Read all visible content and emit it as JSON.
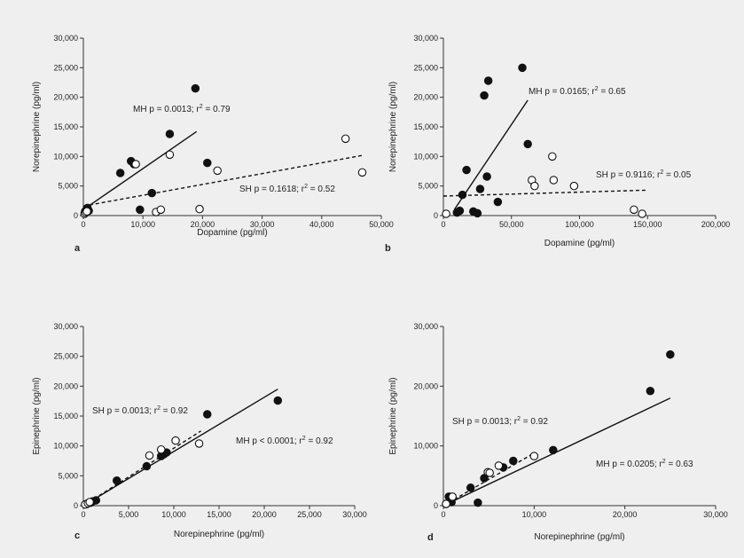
{
  "chart_data": [
    {
      "type": "scatter",
      "panel_label": "a",
      "xlabel": "Dopamine (pg/ml)",
      "ylabel": "Norepinephrine (pg/ml)",
      "xlim": [
        0,
        50000
      ],
      "ylim": [
        0,
        30000
      ],
      "xticks": [
        "0",
        "10,000",
        "20,000",
        "30,000",
        "40,000",
        "50,000"
      ],
      "yticks": [
        "0",
        "5,000",
        "10,000",
        "15,000",
        "20,000",
        "25,000",
        "30,000"
      ],
      "series": [
        {
          "name": "MH",
          "marker": "filled",
          "x": [
            300,
            500,
            700,
            900,
            6200,
            8000,
            8500,
            9500,
            11500,
            14500,
            18800,
            20800
          ],
          "y": [
            700,
            1000,
            1300,
            800,
            7200,
            9200,
            8700,
            1000,
            3800,
            13800,
            21500,
            8900
          ],
          "fit": {
            "line": "solid",
            "x": [
              0,
              19000
            ],
            "y": [
              1000,
              14200
            ]
          },
          "annotation": {
            "prefix": "MH p = 0.0013; r",
            "sup": "2",
            "suffix": " = 0.79"
          }
        },
        {
          "name": "SH",
          "marker": "open",
          "x": [
            200,
            400,
            600,
            8800,
            12200,
            13000,
            14500,
            19500,
            22500,
            44000,
            46800
          ],
          "y": [
            300,
            500,
            700,
            8700,
            600,
            1000,
            10300,
            1100,
            7600,
            13000,
            7300
          ],
          "fit": {
            "line": "dashed",
            "x": [
              0,
              47000
            ],
            "y": [
              1600,
              10200
            ]
          },
          "annotation": {
            "prefix": "SH p = 0.1618; r",
            "sup": "2",
            "suffix": " = 0.52"
          }
        }
      ]
    },
    {
      "type": "scatter",
      "panel_label": "b",
      "xlabel": "Dopamine (pg/ml)",
      "ylabel": "Norepinephrine (pg/ml)",
      "xlim": [
        0,
        200000
      ],
      "ylim": [
        0,
        30000
      ],
      "xticks": [
        "0",
        "50,000",
        "100,000",
        "150,000",
        "200,000"
      ],
      "yticks": [
        "0",
        "5,000",
        "10,000",
        "15,000",
        "20,000",
        "25,000",
        "30,000"
      ],
      "series": [
        {
          "name": "MH",
          "marker": "filled",
          "x": [
            10000,
            12000,
            14000,
            17000,
            22000,
            25000,
            27000,
            30000,
            32000,
            33000,
            40000,
            58000,
            62000
          ],
          "y": [
            500,
            800,
            3500,
            7700,
            700,
            400,
            4500,
            20300,
            6600,
            22800,
            2300,
            25000,
            12100
          ],
          "fit": {
            "line": "solid",
            "x": [
              8000,
              62000
            ],
            "y": [
              1000,
              19500
            ]
          },
          "annotation": {
            "prefix": "MH p = 0.0165; r",
            "sup": "2",
            "suffix": " = 0.65"
          }
        },
        {
          "name": "SH",
          "marker": "open",
          "x": [
            2000,
            65000,
            67000,
            80000,
            81000,
            96000,
            140000,
            146000
          ],
          "y": [
            300,
            6000,
            5000,
            10000,
            6000,
            5000,
            1000,
            300
          ],
          "fit": {
            "line": "dashed",
            "x": [
              0,
              150000
            ],
            "y": [
              3300,
              4300
            ]
          },
          "annotation": {
            "prefix": "SH p = 0.9116; r",
            "sup": "2",
            "suffix": " = 0.05"
          }
        }
      ]
    },
    {
      "type": "scatter",
      "panel_label": "c",
      "xlabel": "Norepinephrine (pg/ml)",
      "ylabel": "Epinephrine (pg/ml)",
      "xlim": [
        0,
        30000
      ],
      "ylim": [
        0,
        30000
      ],
      "xticks": [
        "0",
        "5,000",
        "10,000",
        "15,000",
        "20,000",
        "25,000",
        "30,000"
      ],
      "yticks": [
        "0",
        "5,000",
        "10,000",
        "15,000",
        "20,000",
        "25,000",
        "30,000"
      ],
      "series": [
        {
          "name": "MH",
          "marker": "filled",
          "x": [
            400,
            800,
            1000,
            1400,
            3700,
            7000,
            8600,
            8900,
            9200,
            13700,
            21500
          ],
          "y": [
            300,
            500,
            700,
            900,
            4200,
            6600,
            8300,
            8600,
            8900,
            15300,
            17600
          ],
          "fit": {
            "line": "solid",
            "x": [
              0,
              21500
            ],
            "y": [
              0,
              19500
            ]
          },
          "annotation": {
            "prefix": "MH p < 0.0001; r",
            "sup": "2",
            "suffix": " = 0.92"
          }
        },
        {
          "name": "SH",
          "marker": "open",
          "x": [
            200,
            500,
            700,
            7300,
            8600,
            10200,
            12800
          ],
          "y": [
            200,
            400,
            600,
            8400,
            9400,
            10900,
            10400
          ],
          "fit": {
            "line": "dashed",
            "x": [
              0,
              13000
            ],
            "y": [
              0,
              12500
            ]
          },
          "annotation": {
            "prefix": "SH p = 0.0013; r",
            "sup": "2",
            "suffix": " = 0.92"
          }
        }
      ]
    },
    {
      "type": "scatter",
      "panel_label": "d",
      "xlabel": "Norepinephrine (pg/ml)",
      "ylabel": "Epinephrine (pg/ml)",
      "xlim": [
        0,
        30000
      ],
      "ylim": [
        0,
        30000
      ],
      "xticks": [
        "0",
        "10,000",
        "20,000",
        "30,000"
      ],
      "yticks": [
        "0",
        "10,000",
        "20,000",
        "30,000"
      ],
      "series": [
        {
          "name": "MH",
          "marker": "filled",
          "x": [
            300,
            600,
            900,
            3000,
            3800,
            4500,
            6600,
            7700,
            12100,
            22800,
            25000
          ],
          "y": [
            300,
            1500,
            600,
            3000,
            500,
            4600,
            6400,
            7500,
            9300,
            19200,
            25300
          ],
          "fit": {
            "line": "solid",
            "x": [
              0,
              25000
            ],
            "y": [
              0,
              18000
            ]
          },
          "annotation": {
            "prefix": "MH p = 0.0205; r",
            "sup": "2",
            "suffix": " = 0.63"
          }
        },
        {
          "name": "SH",
          "marker": "open",
          "x": [
            300,
            1000,
            4900,
            5100,
            6100,
            10000
          ],
          "y": [
            300,
            1500,
            5600,
            5500,
            6700,
            8300
          ],
          "fit": {
            "line": "dashed",
            "x": [
              0,
              10000
            ],
            "y": [
              0,
              8800
            ]
          },
          "annotation": {
            "prefix": "SH p = 0.0013; r",
            "sup": "2",
            "suffix": " = 0.92"
          }
        }
      ]
    }
  ]
}
